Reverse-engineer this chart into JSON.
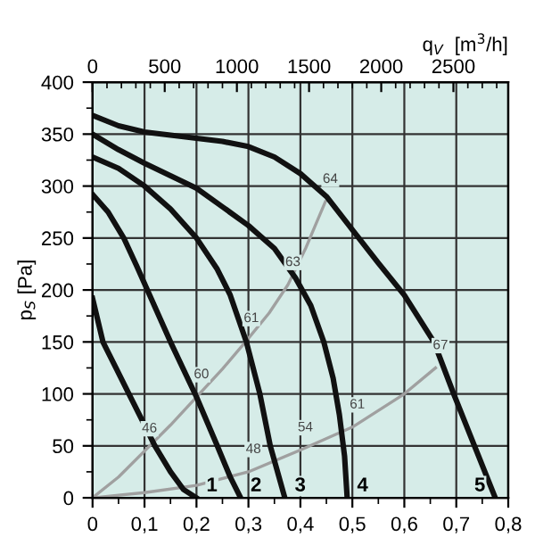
{
  "chart_data": {
    "type": "line",
    "ylabel": "p$_{S}$ [Pa]",
    "x2label": "q$_{V}$  [m$^{3}$/h]",
    "xlim": [
      0,
      0.8
    ],
    "xticks": [
      0,
      {
        "value": 0.1,
        "label": "0,1"
      },
      {
        "value": 0.2,
        "label": "0,2"
      },
      {
        "value": 0.3,
        "label": "0,3"
      },
      {
        "value": 0.4,
        "label": "0,4"
      },
      {
        "value": 0.5,
        "label": "0,5"
      },
      {
        "value": 0.6,
        "label": "0,6"
      },
      {
        "value": 0.7,
        "label": "0,7"
      },
      {
        "value": 0.8,
        "label": "0,8"
      }
    ],
    "ylim": [
      0,
      400
    ],
    "yticks": [
      0,
      50,
      100,
      150,
      200,
      250,
      300,
      350,
      400
    ],
    "x2lim": [
      0,
      2880
    ],
    "x2ticks": [
      0,
      500,
      1000,
      1500,
      2000,
      2500
    ],
    "grid": true,
    "legend": false,
    "line_style": "solid",
    "marker": "none",
    "series": [
      {
        "name": "1",
        "color": "#111111",
        "x": [
          0,
          0.02,
          0.045,
          0.07,
          0.095,
          0.12,
          0.15,
          0.175,
          0.2
        ],
        "values": [
          192,
          150,
          125,
          100,
          75,
          50,
          25,
          8,
          0
        ]
      },
      {
        "name": "2",
        "color": "#111111",
        "x": [
          0,
          0.03,
          0.06,
          0.085,
          0.11,
          0.15,
          0.2,
          0.24,
          0.265,
          0.285
        ],
        "values": [
          292,
          275,
          250,
          223,
          195,
          150,
          97,
          50,
          20,
          0
        ]
      },
      {
        "name": "3",
        "color": "#111111",
        "x": [
          0,
          0.05,
          0.1,
          0.15,
          0.2,
          0.24,
          0.265,
          0.296,
          0.322,
          0.342,
          0.37
        ],
        "values": [
          328,
          317,
          300,
          278,
          250,
          220,
          195,
          150,
          100,
          50,
          0
        ]
      },
      {
        "name": "4",
        "color": "#111111",
        "x": [
          0,
          0.05,
          0.1,
          0.15,
          0.2,
          0.25,
          0.3,
          0.35,
          0.39,
          0.42,
          0.445,
          0.463,
          0.475,
          0.485,
          0.49
        ],
        "values": [
          350,
          335,
          322,
          310,
          298,
          280,
          262,
          240,
          212,
          185,
          150,
          115,
          80,
          40,
          0
        ]
      },
      {
        "name": "5",
        "color": "#111111",
        "x": [
          0,
          0.05,
          0.1,
          0.15,
          0.2,
          0.25,
          0.3,
          0.35,
          0.4,
          0.45,
          0.5,
          0.55,
          0.6,
          0.657,
          0.695,
          0.735,
          0.775
        ],
        "values": [
          368,
          358,
          352,
          349,
          346,
          343,
          338,
          328,
          312,
          290,
          258,
          226,
          195,
          150,
          100,
          50,
          0
        ]
      },
      {
        "color": "#a0a0a0",
        "x": [
          0,
          0.05,
          0.1,
          0.15,
          0.2,
          0.25,
          0.296,
          0.34,
          0.376,
          0.41,
          0.448
        ],
        "values": [
          0,
          20,
          45,
          70,
          97,
          124,
          151,
          178,
          205,
          240,
          285
        ]
      },
      {
        "color": "#a0a0a0",
        "x": [
          0,
          0.1,
          0.2,
          0.3,
          0.4,
          0.5,
          0.6,
          0.66
        ],
        "values": [
          0,
          5,
          12,
          25,
          46,
          68,
          100,
          125
        ]
      }
    ],
    "annotations": [
      {
        "text": "46",
        "x": 0.1,
        "y": 45
      },
      {
        "text": "60",
        "x": 0.2,
        "y": 97
      },
      {
        "text": "61",
        "x": 0.296,
        "y": 151
      },
      {
        "text": "63",
        "x": 0.376,
        "y": 205
      },
      {
        "text": "64",
        "x": 0.448,
        "y": 285
      },
      {
        "text": "48",
        "x": 0.3,
        "y": 25
      },
      {
        "text": "54",
        "x": 0.4,
        "y": 46
      },
      {
        "text": "61",
        "x": 0.5,
        "y": 68
      },
      {
        "text": "67",
        "x": 0.66,
        "y": 125
      }
    ]
  }
}
